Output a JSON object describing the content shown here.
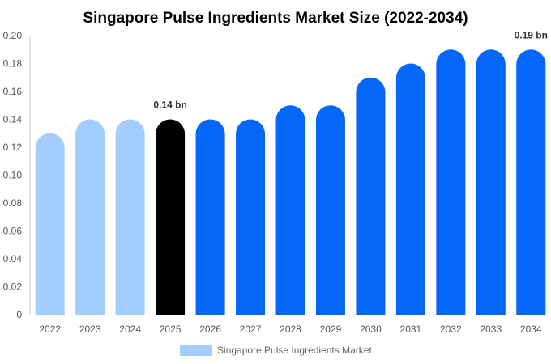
{
  "chart_data": {
    "type": "bar",
    "title": "Singapore Pulse Ingredients Market Size (2022-2034)",
    "categories": [
      "2022",
      "2023",
      "2024",
      "2025",
      "2026",
      "2027",
      "2028",
      "2029",
      "2030",
      "2031",
      "2032",
      "2033",
      "2034"
    ],
    "series": [
      {
        "name": "Singapore Pulse Ingredients Market",
        "values": [
          0.13,
          0.14,
          0.14,
          0.14,
          0.14,
          0.14,
          0.15,
          0.15,
          0.17,
          0.18,
          0.19,
          0.19,
          0.19
        ]
      }
    ],
    "ylim": [
      0,
      0.2
    ],
    "yticks": [
      "0",
      "0.02",
      "0.04",
      "0.06",
      "0.08",
      "0.10",
      "0.12",
      "0.14",
      "0.16",
      "0.18",
      "0.20"
    ],
    "annotations": [
      {
        "category": "2025",
        "text": "0.14 bn"
      },
      {
        "category": "2034",
        "text": "0.19 bn"
      }
    ],
    "colors": {
      "historical": "#a3cdfd",
      "base_year": "#000000",
      "forecast": "#0566fa"
    },
    "legend_position": "bottom",
    "grid": false
  }
}
